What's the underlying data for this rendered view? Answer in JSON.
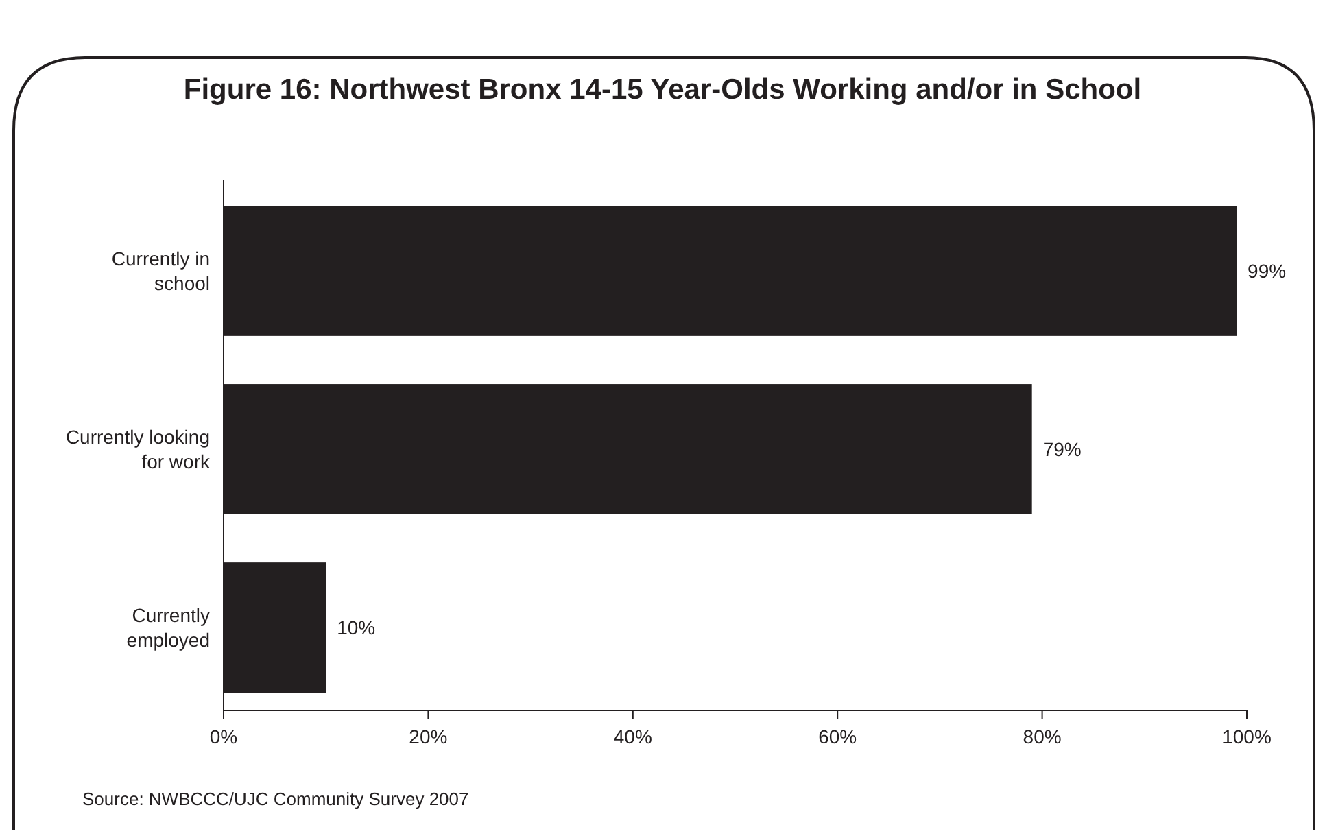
{
  "chart_data": {
    "type": "bar",
    "orientation": "horizontal",
    "title": "Figure 16: Northwest Bronx 14-15 Year-Olds Working and/or in School",
    "categories": [
      "Currently in school",
      "Currently looking for work",
      "Currently employed"
    ],
    "values": [
      99,
      79,
      10
    ],
    "color": "#231f20",
    "value_labels": [
      "99%",
      "79%",
      "10%"
    ],
    "xlim": [
      0,
      100
    ],
    "xticks": [
      {
        "value": 0,
        "label": "0%"
      },
      {
        "value": 20,
        "label": "20%"
      },
      {
        "value": 40,
        "label": "40%"
      },
      {
        "value": 60,
        "label": "60%"
      },
      {
        "value": 80,
        "label": "80%"
      },
      {
        "value": 100,
        "label": "100%"
      }
    ],
    "grid": false,
    "annotations": [
      "Source: NWBCCC/UJC Community Survey 2007"
    ]
  }
}
